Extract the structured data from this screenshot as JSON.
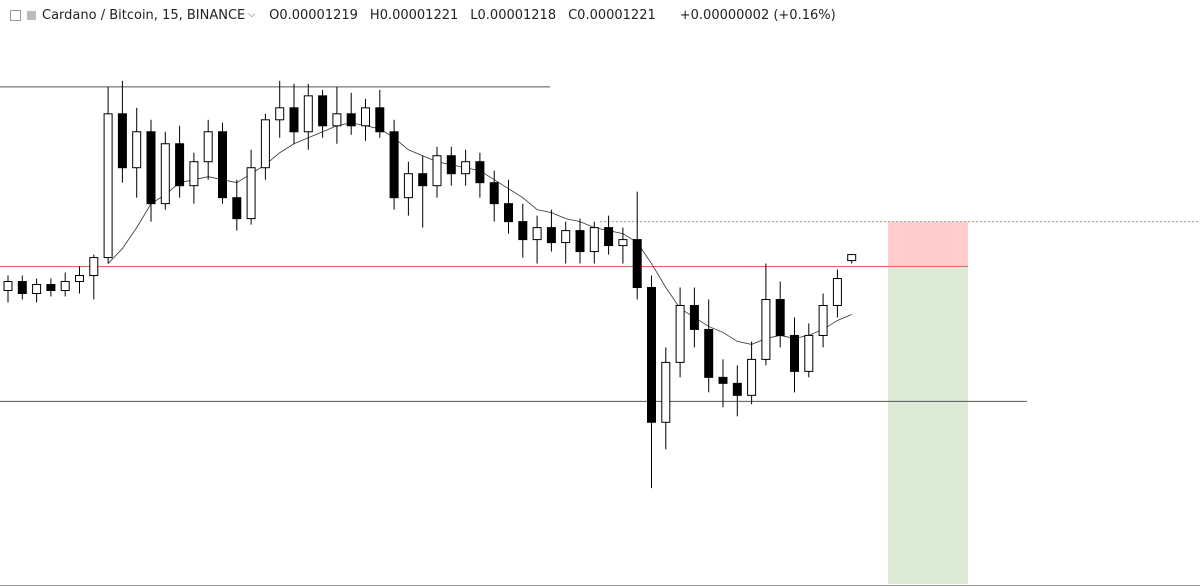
{
  "chart_data": {
    "type": "candlestick",
    "symbol": "Cardano / Bitcoin, 15, BINANCE",
    "legend": [
      {
        "label": "O",
        "value": "0.00001219"
      },
      {
        "label": "H",
        "value": "0.00001221"
      },
      {
        "label": "L",
        "value": "0.00001218"
      },
      {
        "label": "C",
        "value": "0.00001221"
      }
    ],
    "change": "+0.00000002 (+0.16%)",
    "ylim": [
      1.11e-05,
      1.306e-05
    ],
    "open": [
      1.209e-05,
      1.212e-05,
      1.208e-05,
      1.211e-05,
      1.209e-05,
      1.212e-05,
      1.214e-05,
      1.22e-05,
      1.268e-05,
      1.25e-05,
      1.262e-05,
      1.238e-05,
      1.258e-05,
      1.244e-05,
      1.252e-05,
      1.262e-05,
      1.24e-05,
      1.233e-05,
      1.25e-05,
      1.266e-05,
      1.27e-05,
      1.262e-05,
      1.274e-05,
      1.264e-05,
      1.268e-05,
      1.264e-05,
      1.27e-05,
      1.262e-05,
      1.24e-05,
      1.248e-05,
      1.244e-05,
      1.254e-05,
      1.248e-05,
      1.252e-05,
      1.245e-05,
      1.238e-05,
      1.232e-05,
      1.226e-05,
      1.23e-05,
      1.225e-05,
      1.229e-05,
      1.222e-05,
      1.23e-05,
      1.224e-05,
      1.226e-05,
      1.21e-05,
      1.165e-05,
      1.185e-05,
      1.204e-05,
      1.196e-05,
      1.18e-05,
      1.178e-05,
      1.174e-05,
      1.186e-05,
      1.206e-05,
      1.194e-05,
      1.182e-05,
      1.194e-05,
      1.204e-05,
      1.219e-05
    ],
    "high": [
      1.214e-05,
      1.214e-05,
      1.213e-05,
      1.213e-05,
      1.215e-05,
      1.217e-05,
      1.221e-05,
      1.277e-05,
      1.279e-05,
      1.27e-05,
      1.266e-05,
      1.262e-05,
      1.264e-05,
      1.255e-05,
      1.266e-05,
      1.265e-05,
      1.246e-05,
      1.256e-05,
      1.268e-05,
      1.279e-05,
      1.278e-05,
      1.278e-05,
      1.276e-05,
      1.277e-05,
      1.275e-05,
      1.273e-05,
      1.276e-05,
      1.266e-05,
      1.252e-05,
      1.254e-05,
      1.257e-05,
      1.257e-05,
      1.256e-05,
      1.255e-05,
      1.249e-05,
      1.246e-05,
      1.238e-05,
      1.234e-05,
      1.236e-05,
      1.232e-05,
      1.233e-05,
      1.232e-05,
      1.234e-05,
      1.23e-05,
      1.242e-05,
      1.214e-05,
      1.19e-05,
      1.21e-05,
      1.21e-05,
      1.206e-05,
      1.186e-05,
      1.184e-05,
      1.192e-05,
      1.218e-05,
      1.212e-05,
      1.2e-05,
      1.198e-05,
      1.208e-05,
      1.216e-05,
      1.221e-05
    ],
    "low": [
      1.205e-05,
      1.206e-05,
      1.205e-05,
      1.207e-05,
      1.207e-05,
      1.208e-05,
      1.206e-05,
      1.218e-05,
      1.245e-05,
      1.24e-05,
      1.232e-05,
      1.236e-05,
      1.24e-05,
      1.238e-05,
      1.246e-05,
      1.238e-05,
      1.229e-05,
      1.231e-05,
      1.246e-05,
      1.26e-05,
      1.258e-05,
      1.256e-05,
      1.26e-05,
      1.258e-05,
      1.261e-05,
      1.259e-05,
      1.26e-05,
      1.236e-05,
      1.234e-05,
      1.23e-05,
      1.24e-05,
      1.244e-05,
      1.244e-05,
      1.24e-05,
      1.232e-05,
      1.228e-05,
      1.22e-05,
      1.218e-05,
      1.222e-05,
      1.218e-05,
      1.218e-05,
      1.218e-05,
      1.221e-05,
      1.218e-05,
      1.206e-05,
      1.143e-05,
      1.156e-05,
      1.18e-05,
      1.19e-05,
      1.175e-05,
      1.17e-05,
      1.167e-05,
      1.171e-05,
      1.184e-05,
      1.19e-05,
      1.175e-05,
      1.18e-05,
      1.19e-05,
      1.2e-05,
      1.218e-05
    ],
    "close": [
      1.212e-05,
      1.208e-05,
      1.211e-05,
      1.209e-05,
      1.212e-05,
      1.214e-05,
      1.22e-05,
      1.268e-05,
      1.25e-05,
      1.262e-05,
      1.238e-05,
      1.258e-05,
      1.244e-05,
      1.252e-05,
      1.262e-05,
      1.24e-05,
      1.233e-05,
      1.25e-05,
      1.266e-05,
      1.27e-05,
      1.262e-05,
      1.274e-05,
      1.264e-05,
      1.268e-05,
      1.264e-05,
      1.27e-05,
      1.262e-05,
      1.24e-05,
      1.248e-05,
      1.244e-05,
      1.254e-05,
      1.248e-05,
      1.252e-05,
      1.245e-05,
      1.238e-05,
      1.232e-05,
      1.226e-05,
      1.23e-05,
      1.225e-05,
      1.229e-05,
      1.222e-05,
      1.23e-05,
      1.224e-05,
      1.226e-05,
      1.21e-05,
      1.165e-05,
      1.185e-05,
      1.204e-05,
      1.196e-05,
      1.18e-05,
      1.178e-05,
      1.174e-05,
      1.186e-05,
      1.206e-05,
      1.194e-05,
      1.182e-05,
      1.194e-05,
      1.204e-05,
      1.213e-05,
      1.221e-05
    ],
    "ma": [
      null,
      null,
      null,
      null,
      null,
      null,
      null,
      1.218e-05,
      1.223e-05,
      1.23e-05,
      1.238e-05,
      1.241e-05,
      1.245e-05,
      1.246e-05,
      1.247e-05,
      1.246e-05,
      1.245e-05,
      1.248e-05,
      1.251e-05,
      1.255e-05,
      1.258e-05,
      1.26e-05,
      1.262e-05,
      1.264e-05,
      1.265e-05,
      1.264e-05,
      1.263e-05,
      1.26e-05,
      1.256e-05,
      1.254e-05,
      1.252e-05,
      1.251e-05,
      1.25e-05,
      1.249e-05,
      1.246e-05,
      1.243e-05,
      1.24e-05,
      1.236e-05,
      1.235e-05,
      1.233e-05,
      1.232e-05,
      1.23e-05,
      1.229e-05,
      1.228e-05,
      1.225e-05,
      1.218e-05,
      1.21e-05,
      1.203e-05,
      1.2e-05,
      1.197e-05,
      1.195e-05,
      1.192e-05,
      1.191e-05,
      1.193e-05,
      1.194e-05,
      1.193e-05,
      1.194e-05,
      1.196e-05,
      1.199e-05,
      1.201e-05
    ],
    "levels": [
      {
        "value": 1.277e-05,
        "color": "#555555"
      },
      {
        "value": 1.217e-05,
        "color": "#e06666"
      },
      {
        "value": 1.172e-05,
        "color": "#555555"
      }
    ],
    "position": {
      "entry": 1.217e-05,
      "stop": 1.232e-05,
      "target": 1.111e-05,
      "stop_color": "#ffcccc",
      "target_color": "#dcebd6"
    }
  }
}
